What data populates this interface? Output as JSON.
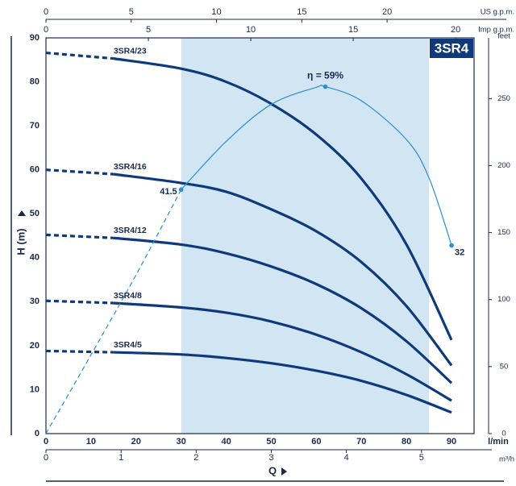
{
  "chart_data": {
    "type": "line",
    "title": "3SR4",
    "ylabel": "H (m)",
    "xlabel": "Q",
    "x_unit": "l/min",
    "xlim": [
      0,
      95
    ],
    "xticks": [
      0,
      10,
      20,
      30,
      40,
      50,
      60,
      70,
      80,
      90
    ],
    "ylim": [
      0,
      90
    ],
    "yticks": [
      0,
      10,
      20,
      30,
      40,
      50,
      60,
      70,
      80,
      90
    ],
    "grid": true,
    "highlight_range": [
      30,
      85
    ],
    "highlight_color": "#d2e5f3",
    "x": [
      0,
      15,
      30,
      40,
      50,
      60,
      70,
      80,
      90
    ],
    "dashed_until": 15,
    "series": [
      {
        "name": "3SR4/23",
        "color": "#0e3a7c",
        "values": [
          86.6,
          85.3,
          83,
          80,
          75,
          68,
          58,
          43,
          21.3
        ]
      },
      {
        "name": "3SR4/16",
        "color": "#0e3a7c",
        "values": [
          60,
          59,
          57,
          55,
          51,
          46,
          39,
          29,
          15.5
        ]
      },
      {
        "name": "3SR4/12",
        "color": "#0e3a7c",
        "values": [
          45.2,
          44.5,
          43,
          41,
          38,
          34,
          28.5,
          21,
          11.5
        ]
      },
      {
        "name": "3SR4/8",
        "color": "#0e3a7c",
        "values": [
          30.2,
          29.7,
          28.7,
          27.5,
          25.5,
          22.5,
          18.5,
          13.5,
          7.5
        ]
      },
      {
        "name": "3SR4/5",
        "color": "#0e3a7c",
        "values": [
          18.8,
          18.5,
          18,
          17.2,
          16,
          14.3,
          12,
          8.8,
          4.8
        ]
      }
    ],
    "efficiency": {
      "color": "#2a8fd0",
      "lim": [
        0,
        67.3
      ],
      "dashed_until": 30,
      "x": [
        0,
        10,
        20,
        30,
        40,
        50,
        60,
        62,
        70,
        80,
        85,
        90
      ],
      "values": [
        0,
        13.4,
        27,
        41.5,
        49.7,
        56,
        58.9,
        59,
        56.6,
        50,
        43.5,
        32
      ],
      "value_labels": [
        null,
        null,
        null,
        "41.5",
        null,
        null,
        null,
        "η = 59%",
        null,
        null,
        null,
        "32"
      ]
    },
    "secondary_axes": [
      {
        "label": "US g.p.m.",
        "position": "top",
        "lim": [
          0,
          25.1
        ],
        "ticks": [
          0,
          5,
          10,
          15,
          20
        ]
      },
      {
        "label": "Imp g.p.m.",
        "position": "top2",
        "lim": [
          0,
          20.9
        ],
        "ticks": [
          0,
          5,
          10,
          15,
          20
        ]
      },
      {
        "label": "m³/h",
        "position": "bottom",
        "lim": [
          0,
          5.7
        ],
        "ticks": [
          0,
          1,
          2,
          3,
          4,
          5
        ]
      },
      {
        "label": "feet",
        "position": "right",
        "lim": [
          0,
          295.3
        ],
        "ticks": [
          0,
          50,
          100,
          150,
          200,
          250
        ]
      }
    ]
  }
}
